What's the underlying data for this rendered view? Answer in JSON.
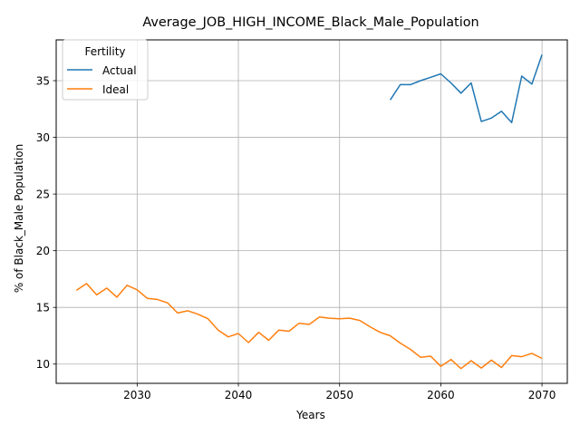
{
  "chart_data": {
    "type": "line",
    "title": "Average_JOB_HIGH_INCOME_Black_Male_Population",
    "xlabel": "Years",
    "ylabel": "% of Black_Male Population",
    "xlim": [
      2022,
      2072.5
    ],
    "ylim": [
      8.3,
      38.6
    ],
    "xticks": [
      2030,
      2040,
      2050,
      2060,
      2070
    ],
    "yticks": [
      10,
      15,
      20,
      25,
      30,
      35
    ],
    "grid": true,
    "legend": {
      "title": "Fertility",
      "position": "top-left"
    },
    "series": [
      {
        "name": "Actual",
        "color": "#1f77b4",
        "x": [
          2055,
          2056,
          2057,
          2058,
          2059,
          2060,
          2061,
          2062,
          2063,
          2064,
          2065,
          2066,
          2067,
          2068,
          2069,
          2070
        ],
        "y": [
          33.3,
          34.65,
          34.65,
          35.0,
          35.3,
          35.6,
          34.8,
          33.9,
          34.8,
          31.4,
          31.7,
          32.3,
          31.3,
          35.4,
          34.7,
          37.3
        ]
      },
      {
        "name": "Ideal",
        "color": "#ff7f0e",
        "x": [
          2024,
          2025,
          2026,
          2027,
          2028,
          2029,
          2030,
          2031,
          2032,
          2033,
          2034,
          2035,
          2036,
          2037,
          2038,
          2039,
          2040,
          2041,
          2042,
          2043,
          2044,
          2045,
          2046,
          2047,
          2048,
          2049,
          2050,
          2051,
          2052,
          2053,
          2054,
          2055,
          2056,
          2057,
          2058,
          2059,
          2060,
          2061,
          2062,
          2063,
          2064,
          2065,
          2066,
          2067,
          2068,
          2069,
          2070
        ],
        "y": [
          16.5,
          17.1,
          16.1,
          16.7,
          15.9,
          16.95,
          16.55,
          15.8,
          15.7,
          15.4,
          14.5,
          14.7,
          14.4,
          14.0,
          13.0,
          12.4,
          12.7,
          11.9,
          12.8,
          12.1,
          13.0,
          12.9,
          13.6,
          13.5,
          14.15,
          14.05,
          14.0,
          14.05,
          13.85,
          13.3,
          12.8,
          12.5,
          11.85,
          11.3,
          10.6,
          10.7,
          9.8,
          10.4,
          9.6,
          10.3,
          9.65,
          10.35,
          9.7,
          10.75,
          10.65,
          10.95,
          10.5
        ]
      }
    ]
  }
}
